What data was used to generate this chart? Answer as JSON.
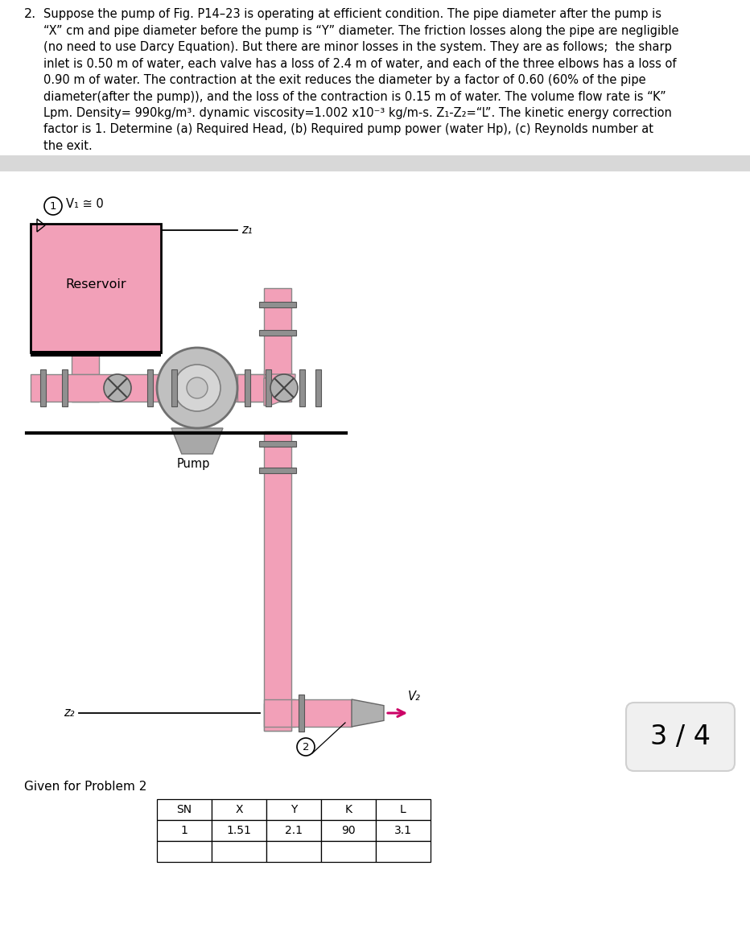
{
  "problem_text_lines": [
    "Suppose the pump of Fig. P14–23 is operating at efficient condition. The pipe diameter after the pump is",
    "“X” cm and pipe diameter before the pump is “Y” diameter. The friction losses along the pipe are negligible",
    "(no need to use Darcy Equation). But there are minor losses in the system. They are as follows;  the sharp",
    "inlet is 0.50 m of water, each valve has a loss of 2.4 m of water, and each of the three elbows has a loss of",
    "0.90 m of water. The contraction at the exit reduces the diameter by a factor of 0.60 (60% of the pipe",
    "diameter(after the pump)), and the loss of the contraction is 0.15 m of water. The volume flow rate is “K”",
    "Lpm. Density= 990kg/m³. dynamic viscosity=1.002 x10⁻³ kg/m-s. Z₁-Z₂=“L”. The kinetic energy correction",
    "factor is 1. Determine (a) Required Head, (b) Required pump power (water Hp), (c) Reynolds number at",
    "the exit."
  ],
  "label_V1": "V₁ ≅ 0",
  "label_z1": "z₁",
  "label_z2": "z₂",
  "label_reservoir": "Reservoir",
  "label_pump": "Pump",
  "label_V2": "V₂",
  "label_page": "3 / 4",
  "given_title": "Given for Problem 2",
  "table_headers": [
    "SN",
    "X",
    "Y",
    "K",
    "L"
  ],
  "table_row": [
    "1",
    "1.51",
    "2.1",
    "90",
    "3.1"
  ],
  "pipe_color": "#F2A0B8",
  "reservoir_color": "#F2A0B8",
  "bg_color": "#ffffff",
  "gray_band_color": "#d8d8d8",
  "arrow_color": "#CC0066",
  "text_color": "#111111",
  "flange_color": "#909090",
  "pump_outer_color": "#c0c0c0",
  "pump_inner_color": "#d5d5d5",
  "pump_base_color": "#a8a8a8"
}
